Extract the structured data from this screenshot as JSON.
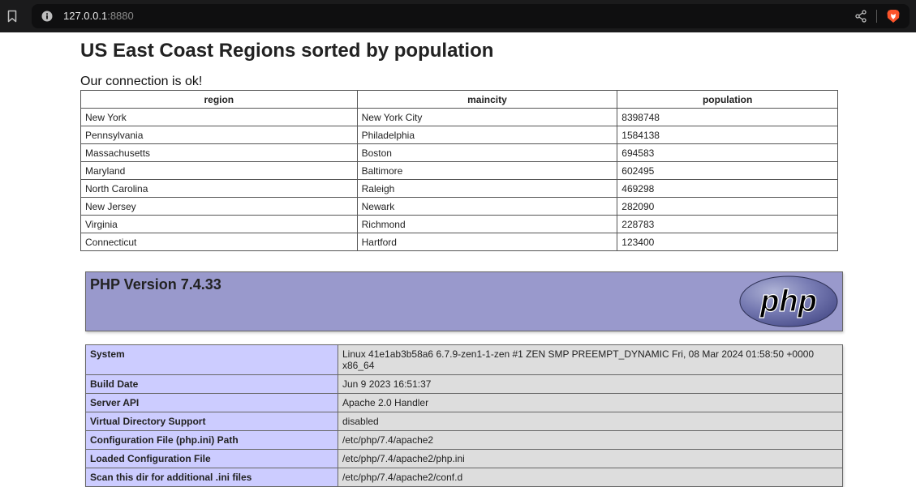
{
  "browser": {
    "url_host": "127.0.0.1",
    "url_port": ":8880",
    "icons": [
      "bookmark-icon",
      "info-icon",
      "share-icon",
      "brave-lion-icon"
    ]
  },
  "page": {
    "title": "US East Coast Regions sorted by population",
    "connection_message": "Our connection is ok!"
  },
  "regions_table": {
    "headers": [
      "region",
      "maincity",
      "population"
    ],
    "rows": [
      [
        "New York",
        "New York City",
        "8398748"
      ],
      [
        "Pennsylvania",
        "Philadelphia",
        "1584138"
      ],
      [
        "Massachusetts",
        "Boston",
        "694583"
      ],
      [
        "Maryland",
        "Baltimore",
        "602495"
      ],
      [
        "North Carolina",
        "Raleigh",
        "469298"
      ],
      [
        "New Jersey",
        "Newark",
        "282090"
      ],
      [
        "Virginia",
        "Richmond",
        "228783"
      ],
      [
        "Connecticut",
        "Hartford",
        "123400"
      ]
    ]
  },
  "phpinfo": {
    "version_title": "PHP Version 7.4.33",
    "logo_text": "php",
    "rows": [
      [
        "System",
        "Linux 41e1ab3b58a6 6.7.9-zen1-1-zen #1 ZEN SMP PREEMPT_DYNAMIC Fri, 08 Mar 2024 01:58:50 +0000 x86_64"
      ],
      [
        "Build Date",
        "Jun 9 2023 16:51:37"
      ],
      [
        "Server API",
        "Apache 2.0 Handler"
      ],
      [
        "Virtual Directory Support",
        "disabled"
      ],
      [
        "Configuration File (php.ini) Path",
        "/etc/php/7.4/apache2"
      ],
      [
        "Loaded Configuration File",
        "/etc/php/7.4/apache2/php.ini"
      ],
      [
        "Scan this dir for additional .ini files",
        "/etc/php/7.4/apache2/conf.d"
      ]
    ]
  },
  "colors": {
    "chrome_bg": "#1b1b1c",
    "php_header_bg": "#9999cc",
    "php_key_bg": "#ccccff",
    "php_value_bg": "#dddddd"
  }
}
